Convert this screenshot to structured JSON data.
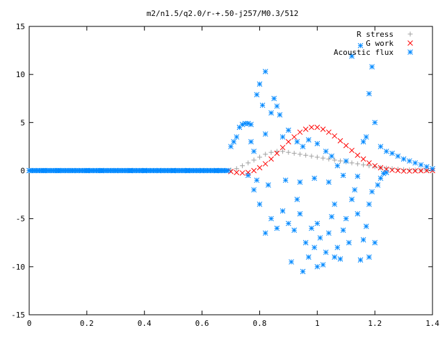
{
  "chart_data": {
    "type": "scatter",
    "title": "m2/n1.5/q2.0/r-+.50-j257/M0.3/512",
    "xlabel": "",
    "ylabel": "",
    "xlim": [
      0,
      1.4
    ],
    "ylim": [
      -15,
      15
    ],
    "xticks": [
      "0",
      "0.2",
      "0.4",
      "0.6",
      "0.8",
      "1",
      "1.2",
      "1.4"
    ],
    "yticks": [
      "15",
      "10",
      "5",
      "0",
      "-5",
      "-10",
      "-15"
    ],
    "grid": false,
    "legend_position": "top-right",
    "series": [
      {
        "name": "R stress",
        "marker": "plus",
        "color": "#a0a0a0",
        "points": [
          [
            0.7,
            0.05
          ],
          [
            0.72,
            0.2
          ],
          [
            0.74,
            0.5
          ],
          [
            0.76,
            0.8
          ],
          [
            0.78,
            1.1
          ],
          [
            0.8,
            1.4
          ],
          [
            0.82,
            1.7
          ],
          [
            0.84,
            1.9
          ],
          [
            0.86,
            2.0
          ],
          [
            0.88,
            2.0
          ],
          [
            0.9,
            1.9
          ],
          [
            0.92,
            1.8
          ],
          [
            0.94,
            1.7
          ],
          [
            0.96,
            1.6
          ],
          [
            0.98,
            1.5
          ],
          [
            1.0,
            1.4
          ],
          [
            1.02,
            1.3
          ],
          [
            1.04,
            1.2
          ],
          [
            1.06,
            1.1
          ],
          [
            1.08,
            1.0
          ],
          [
            1.1,
            0.9
          ],
          [
            1.12,
            0.8
          ],
          [
            1.14,
            0.7
          ],
          [
            1.16,
            0.6
          ],
          [
            1.18,
            0.5
          ],
          [
            1.2,
            0.4
          ],
          [
            1.22,
            0.3
          ],
          [
            1.24,
            0.25
          ],
          [
            1.26,
            0.2
          ],
          [
            1.28,
            0.15
          ],
          [
            1.3,
            0.1
          ],
          [
            1.32,
            0.08
          ],
          [
            1.34,
            0.05
          ],
          [
            1.36,
            0.03
          ],
          [
            1.38,
            0.02
          ],
          [
            1.4,
            0.0
          ]
        ]
      },
      {
        "name": "G work",
        "marker": "cross",
        "color": "#ff0000",
        "points": [
          [
            0.7,
            -0.1
          ],
          [
            0.72,
            -0.2
          ],
          [
            0.74,
            -0.25
          ],
          [
            0.76,
            -0.2
          ],
          [
            0.78,
            0.0
          ],
          [
            0.8,
            0.3
          ],
          [
            0.82,
            0.7
          ],
          [
            0.84,
            1.2
          ],
          [
            0.86,
            1.8
          ],
          [
            0.88,
            2.4
          ],
          [
            0.9,
            3.0
          ],
          [
            0.92,
            3.5
          ],
          [
            0.94,
            4.0
          ],
          [
            0.96,
            4.3
          ],
          [
            0.98,
            4.5
          ],
          [
            1.0,
            4.5
          ],
          [
            1.02,
            4.3
          ],
          [
            1.04,
            4.0
          ],
          [
            1.06,
            3.6
          ],
          [
            1.08,
            3.1
          ],
          [
            1.1,
            2.6
          ],
          [
            1.12,
            2.1
          ],
          [
            1.14,
            1.6
          ],
          [
            1.16,
            1.2
          ],
          [
            1.18,
            0.8
          ],
          [
            1.2,
            0.5
          ],
          [
            1.22,
            0.3
          ],
          [
            1.24,
            0.15
          ],
          [
            1.26,
            0.05
          ],
          [
            1.28,
            0.0
          ],
          [
            1.3,
            -0.05
          ],
          [
            1.32,
            -0.05
          ],
          [
            1.34,
            -0.03
          ],
          [
            1.36,
            -0.02
          ],
          [
            1.38,
            0.0
          ],
          [
            1.4,
            0.0
          ]
        ]
      },
      {
        "name": "Acoustic flux",
        "marker": "star",
        "color": "#0088ff",
        "points": [
          [
            0.0,
            0
          ],
          [
            0.05,
            0
          ],
          [
            0.1,
            0
          ],
          [
            0.15,
            0
          ],
          [
            0.2,
            0
          ],
          [
            0.25,
            0
          ],
          [
            0.3,
            0
          ],
          [
            0.35,
            0
          ],
          [
            0.4,
            0
          ],
          [
            0.45,
            0
          ],
          [
            0.5,
            0
          ],
          [
            0.55,
            0
          ],
          [
            0.6,
            0
          ],
          [
            0.65,
            0
          ],
          [
            0.69,
            0
          ],
          [
            0.7,
            2.5
          ],
          [
            0.71,
            3.0
          ],
          [
            0.72,
            3.5
          ],
          [
            0.73,
            4.5
          ],
          [
            0.74,
            4.8
          ],
          [
            0.75,
            4.9
          ],
          [
            0.76,
            4.9
          ],
          [
            0.77,
            4.8
          ],
          [
            0.8,
            9.0
          ],
          [
            0.82,
            10.3
          ],
          [
            0.79,
            7.9
          ],
          [
            0.85,
            7.5
          ],
          [
            0.81,
            6.8
          ],
          [
            0.84,
            6.0
          ],
          [
            0.87,
            5.8
          ],
          [
            0.86,
            6.7
          ],
          [
            0.88,
            3.5
          ],
          [
            0.9,
            4.2
          ],
          [
            0.93,
            3.0
          ],
          [
            0.77,
            3.0
          ],
          [
            0.78,
            2.0
          ],
          [
            0.82,
            3.8
          ],
          [
            0.95,
            2.5
          ],
          [
            0.97,
            3.2
          ],
          [
            1.0,
            2.8
          ],
          [
            1.03,
            2.0
          ],
          [
            1.05,
            1.5
          ],
          [
            1.07,
            0.5
          ],
          [
            1.1,
            1.0
          ],
          [
            1.12,
            11.9
          ],
          [
            1.15,
            13.0
          ],
          [
            1.18,
            8.0
          ],
          [
            1.19,
            10.8
          ],
          [
            1.2,
            5.0
          ],
          [
            1.17,
            3.5
          ],
          [
            1.16,
            3.0
          ],
          [
            1.22,
            2.5
          ],
          [
            1.24,
            2.0
          ],
          [
            1.26,
            1.8
          ],
          [
            1.28,
            1.5
          ],
          [
            1.3,
            1.2
          ],
          [
            1.32,
            1.0
          ],
          [
            1.34,
            0.8
          ],
          [
            1.36,
            0.6
          ],
          [
            1.38,
            0.4
          ],
          [
            1.4,
            0.2
          ],
          [
            0.78,
            -2.0
          ],
          [
            0.8,
            -3.5
          ],
          [
            0.82,
            -6.5
          ],
          [
            0.84,
            -5.0
          ],
          [
            0.86,
            -6.0
          ],
          [
            0.88,
            -4.2
          ],
          [
            0.9,
            -5.5
          ],
          [
            0.91,
            -9.5
          ],
          [
            0.92,
            -6.2
          ],
          [
            0.93,
            -3.0
          ],
          [
            0.94,
            -4.5
          ],
          [
            0.96,
            -7.5
          ],
          [
            0.97,
            -9.0
          ],
          [
            0.98,
            -6.0
          ],
          [
            0.99,
            -8.0
          ],
          [
            1.0,
            -5.5
          ],
          [
            1.01,
            -7.0
          ],
          [
            1.02,
            -9.8
          ],
          [
            1.03,
            -8.5
          ],
          [
            1.04,
            -6.5
          ],
          [
            1.05,
            -4.8
          ],
          [
            1.06,
            -3.5
          ],
          [
            1.07,
            -8.0
          ],
          [
            1.08,
            -9.2
          ],
          [
            1.09,
            -6.2
          ],
          [
            1.1,
            -5.0
          ],
          [
            1.11,
            -7.5
          ],
          [
            1.12,
            -3.0
          ],
          [
            1.13,
            -2.0
          ],
          [
            1.14,
            -4.5
          ],
          [
            1.15,
            -9.3
          ],
          [
            1.16,
            -7.2
          ],
          [
            1.17,
            -5.8
          ],
          [
            1.18,
            -3.5
          ],
          [
            1.19,
            -2.2
          ],
          [
            1.2,
            -7.5
          ],
          [
            1.21,
            -1.5
          ],
          [
            1.22,
            -0.8
          ],
          [
            1.23,
            -0.3
          ],
          [
            0.95,
            -10.5
          ],
          [
            1.0,
            -10.0
          ],
          [
            1.06,
            -9.0
          ],
          [
            1.18,
            -9.0
          ],
          [
            0.76,
            -0.5
          ],
          [
            0.79,
            -1.0
          ],
          [
            0.83,
            -1.5
          ],
          [
            0.89,
            -1.0
          ],
          [
            0.94,
            -1.2
          ],
          [
            0.99,
            -0.8
          ],
          [
            1.04,
            -1.2
          ],
          [
            1.09,
            -0.5
          ],
          [
            1.14,
            -0.6
          ],
          [
            1.24,
            -0.2
          ]
        ]
      }
    ]
  }
}
